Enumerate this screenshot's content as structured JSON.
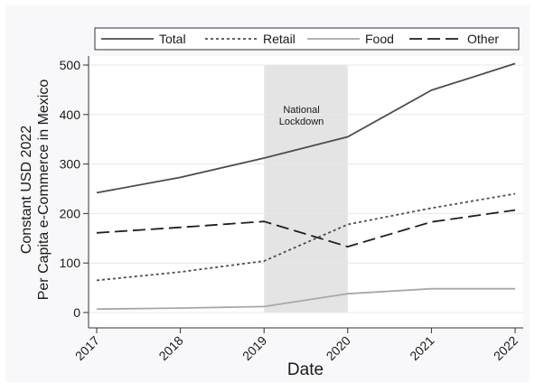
{
  "chart_data": {
    "type": "line",
    "title": "",
    "xlabel": "Date",
    "ylabel_lines": [
      "Constant USD 2022",
      "Per Capita e-Commerce in Mexico"
    ],
    "categories": [
      "2017",
      "2018",
      "2019",
      "2020",
      "2021",
      "2022"
    ],
    "x": [
      2017,
      2018,
      2019,
      2020,
      2021,
      2022
    ],
    "xlim": [
      2017,
      2022
    ],
    "ylim": [
      0,
      500
    ],
    "yticks": [
      0,
      100,
      200,
      300,
      400,
      500
    ],
    "grid": "horizontal",
    "legend_position": "top",
    "series": [
      {
        "name": "Total",
        "values": [
          242,
          273,
          312,
          355,
          449,
          503
        ],
        "color": "#4d4d4d",
        "style": "solid"
      },
      {
        "name": "Retail",
        "values": [
          65,
          82,
          104,
          178,
          211,
          240
        ],
        "color": "#4d4d4d",
        "style": "dotted"
      },
      {
        "name": "Food",
        "values": [
          7,
          9,
          12,
          38,
          48,
          48
        ],
        "color": "#a8a8a8",
        "style": "solid"
      },
      {
        "name": "Other",
        "values": [
          161,
          172,
          184,
          133,
          183,
          207
        ],
        "color": "#1f1f1f",
        "style": "dashed"
      }
    ],
    "shaded_region": {
      "x_start": 2019,
      "x_end": 2020,
      "color": "#e4e4e4",
      "label_lines": [
        "National",
        "Lockdown"
      ]
    }
  }
}
